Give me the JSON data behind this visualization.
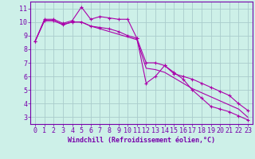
{
  "title": "",
  "xlabel": "Windchill (Refroidissement éolien,°C)",
  "ylabel": "",
  "background_color": "#cdf0e8",
  "grid_color": "#aacccc",
  "line_color": "#aa00aa",
  "spine_color": "#7700aa",
  "xlim": [
    -0.5,
    23.5
  ],
  "ylim": [
    2.5,
    11.5
  ],
  "yticks": [
    3,
    4,
    5,
    6,
    7,
    8,
    9,
    10,
    11
  ],
  "xticks": [
    0,
    1,
    2,
    3,
    4,
    5,
    6,
    7,
    8,
    9,
    10,
    11,
    12,
    13,
    14,
    15,
    16,
    17,
    18,
    19,
    20,
    21,
    22,
    23
  ],
  "series1_x": [
    0,
    1,
    2,
    3,
    4,
    5,
    6,
    7,
    8,
    9,
    10,
    11,
    12,
    13,
    14,
    15,
    16,
    17,
    18,
    19,
    20,
    21,
    22,
    23
  ],
  "series1_y": [
    8.6,
    10.2,
    10.2,
    9.9,
    10.1,
    11.1,
    10.2,
    10.4,
    10.3,
    10.2,
    10.2,
    8.8,
    5.5,
    6.0,
    6.8,
    6.3,
    5.8,
    5.0,
    4.4,
    3.8,
    3.6,
    3.4,
    3.1,
    2.8
  ],
  "series2_x": [
    0,
    1,
    2,
    3,
    4,
    5,
    6,
    7,
    8,
    9,
    10,
    11,
    12,
    13,
    14,
    15,
    16,
    17,
    18,
    19,
    20,
    21,
    22,
    23
  ],
  "series2_y": [
    8.6,
    10.1,
    10.1,
    9.8,
    10.0,
    10.0,
    9.7,
    9.6,
    9.5,
    9.3,
    9.0,
    8.8,
    7.0,
    7.0,
    6.8,
    6.2,
    6.0,
    5.8,
    5.5,
    5.2,
    4.9,
    4.6,
    4.0,
    3.5
  ],
  "series3_x": [
    0,
    1,
    2,
    3,
    4,
    5,
    6,
    7,
    8,
    9,
    10,
    11,
    12,
    13,
    14,
    15,
    16,
    17,
    18,
    19,
    20,
    21,
    22,
    23
  ],
  "series3_y": [
    8.6,
    10.1,
    10.1,
    9.8,
    10.0,
    10.0,
    9.7,
    9.5,
    9.3,
    9.1,
    8.9,
    8.7,
    6.6,
    6.5,
    6.3,
    5.9,
    5.5,
    5.1,
    4.8,
    4.5,
    4.2,
    3.9,
    3.6,
    3.0
  ],
  "xlabel_fontsize": 6.0,
  "tick_fontsize": 6.0
}
